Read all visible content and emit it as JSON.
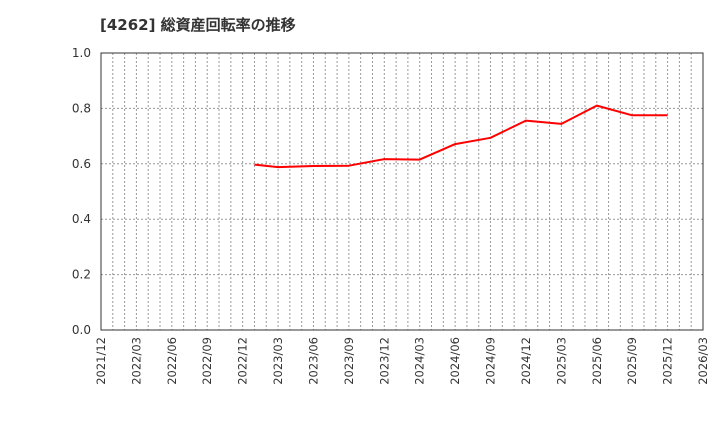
{
  "title": "[4262]  総資産回転率の推移",
  "colors": {
    "line": "#ff0000",
    "grid": "#999999",
    "axis": "#333333"
  },
  "chart_data": {
    "type": "line",
    "title": "[4262]  総資産回転率の推移",
    "xlabel": "",
    "ylabel": "",
    "ylim": [
      0.0,
      1.0
    ],
    "yticks": [
      "0.0",
      "0.2",
      "0.4",
      "0.6",
      "0.8",
      "1.0"
    ],
    "xticks": [
      "2021/12",
      "2022/03",
      "2022/06",
      "2022/09",
      "2022/12",
      "2023/03",
      "2023/06",
      "2023/09",
      "2023/12",
      "2024/03",
      "2024/06",
      "2024/09",
      "2024/12",
      "2025/03",
      "2025/06",
      "2025/09",
      "2025/12",
      "2026/03"
    ],
    "grid": true,
    "legend": null,
    "series": [
      {
        "name": "総資産回転率",
        "x": [
          "2023/01",
          "2023/03",
          "2023/06",
          "2023/09",
          "2023/12",
          "2024/03",
          "2024/06",
          "2024/09",
          "2024/12",
          "2025/03",
          "2025/06",
          "2025/09",
          "2025/12"
        ],
        "values": [
          0.597,
          0.588,
          0.592,
          0.593,
          0.617,
          0.615,
          0.671,
          0.694,
          0.756,
          0.744,
          0.81,
          0.775,
          0.775
        ]
      }
    ]
  }
}
